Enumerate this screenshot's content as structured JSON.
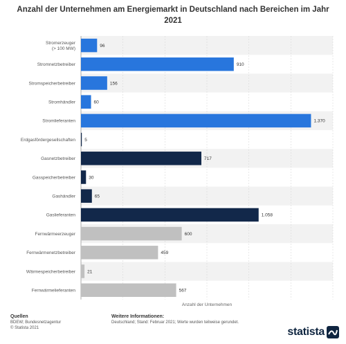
{
  "title": "Anzahl der Unternehmen am Energiemarkt in Deutschland nach Bereichen im Jahr 2021",
  "colors": {
    "strom": "#2876dd",
    "gas": "#12284a",
    "waerme": "#c0c0c0",
    "band": "#f2f2f2",
    "grid": "#d9d9d9"
  },
  "chart_data": {
    "type": "bar",
    "orientation": "horizontal",
    "categories": [
      "Stromerzeuger\n(> 100 MW)",
      "Stromnetzbetreiber",
      "Stromspeicherbetreiber",
      "Stromhändler",
      "Stromlieferanten",
      "Erdgasfördergesellschaften",
      "Gasnetzbetreiber",
      "Gasspeicherbetreiber",
      "Gashändler",
      "Gaslieferanten",
      "Fernwärmeerzeuger",
      "Fernwärmenetzbetreiber",
      "Wärmespeicherbetreiber",
      "Fernwärmelieferanten"
    ],
    "values": [
      96,
      910,
      156,
      60,
      1370,
      5,
      717,
      30,
      65,
      1058,
      600,
      459,
      21,
      567
    ],
    "value_labels": [
      "96",
      "910",
      "156",
      "60",
      "1.370",
      "5",
      "717",
      "30",
      "65",
      "1.058",
      "600",
      "459",
      "21",
      "567"
    ],
    "groups": [
      "strom",
      "strom",
      "strom",
      "strom",
      "strom",
      "gas",
      "gas",
      "gas",
      "gas",
      "gas",
      "waerme",
      "waerme",
      "waerme",
      "waerme"
    ],
    "title": "Anzahl der Unternehmen am Energiemarkt in Deutschland nach Bereichen im Jahr 2021",
    "xlabel": "Anzahl der Unternehmen",
    "ylabel": "",
    "xlim": [
      0,
      1500
    ],
    "grid": true,
    "legend": "none"
  },
  "footer": {
    "sources_heading": "Quellen",
    "sources_lines": [
      "BDEW; Bundesnetzagentur",
      "© Statista 2021"
    ],
    "info_heading": "Weitere Informationen:",
    "info_text": "Deutschland; Stand: Februar 2021; Werte wurden teilweise gerundet.",
    "logo_text": "statista"
  }
}
